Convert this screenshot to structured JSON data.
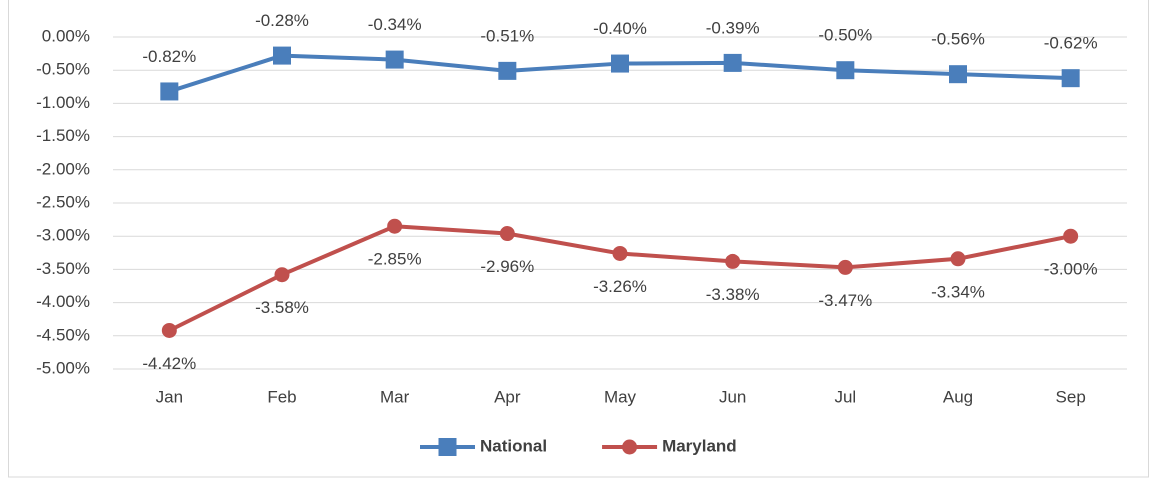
{
  "chart_data": {
    "type": "line",
    "categories": [
      "Jan",
      "Feb",
      "Mar",
      "Apr",
      "May",
      "Jun",
      "Jul",
      "Aug",
      "Sep"
    ],
    "series": [
      {
        "name": "National",
        "color": "#4a7ebb",
        "marker": "square",
        "values": [
          -0.82,
          -0.28,
          -0.34,
          -0.51,
          -0.4,
          -0.39,
          -0.5,
          -0.56,
          -0.62
        ],
        "value_labels": [
          "-0.82%",
          "-0.28%",
          "-0.34%",
          "-0.51%",
          "-0.40%",
          "-0.39%",
          "-0.50%",
          "-0.56%",
          "-0.62%"
        ]
      },
      {
        "name": "Maryland",
        "color": "#c0504d",
        "marker": "circle",
        "values": [
          -4.42,
          -3.58,
          -2.85,
          -2.96,
          -3.26,
          -3.38,
          -3.47,
          -3.34,
          -3.0
        ],
        "value_labels": [
          "-4.42%",
          "-3.58%",
          "-2.85%",
          "-2.96%",
          "-3.26%",
          "-3.38%",
          "-3.47%",
          "-3.34%",
          "-3.00%"
        ]
      }
    ],
    "ylim": [
      -5,
      0
    ],
    "yticks": [
      {
        "value": 0,
        "label": "0.00%"
      },
      {
        "value": -0.5,
        "label": "-0.50%"
      },
      {
        "value": -1,
        "label": "-1.00%"
      },
      {
        "value": -1.5,
        "label": "-1.50%"
      },
      {
        "value": -2,
        "label": "-2.00%"
      },
      {
        "value": -2.5,
        "label": "-2.50%"
      },
      {
        "value": -3,
        "label": "-3.00%"
      },
      {
        "value": -3.5,
        "label": "-3.50%"
      },
      {
        "value": -4,
        "label": "-4.00%"
      },
      {
        "value": -4.5,
        "label": "-4.50%"
      },
      {
        "value": -5,
        "label": "-5.00%"
      }
    ],
    "grid": true,
    "legend": "bottom"
  }
}
